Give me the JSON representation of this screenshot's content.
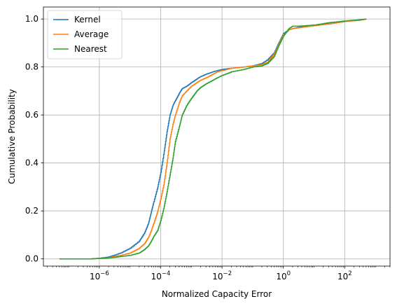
{
  "chart_data": {
    "type": "line",
    "title": "",
    "xlabel": "Normalized Capacity Error",
    "ylabel": "Cumulative Probability",
    "xscale": "log",
    "xlim": [
      1.5e-08,
      3000
    ],
    "ylim": [
      -0.03,
      1.05
    ],
    "grid": true,
    "legend_position": "top-left",
    "xticks": [
      {
        "value": 1e-06,
        "base": "10",
        "exp": "−6"
      },
      {
        "value": 0.0001,
        "base": "10",
        "exp": "−4"
      },
      {
        "value": 0.01,
        "base": "10",
        "exp": "−2"
      },
      {
        "value": 1,
        "base": "10",
        "exp": "0"
      },
      {
        "value": 100,
        "base": "10",
        "exp": "2"
      }
    ],
    "yticks": [
      {
        "value": 0.0,
        "label": "0.0"
      },
      {
        "value": 0.2,
        "label": "0.2"
      },
      {
        "value": 0.4,
        "label": "0.4"
      },
      {
        "value": 0.6,
        "label": "0.6"
      },
      {
        "value": 0.8,
        "label": "0.8"
      },
      {
        "value": 1.0,
        "label": "1.0"
      }
    ],
    "series": [
      {
        "name": "Kernel",
        "color": "#1f77b4",
        "x": [
          5e-08,
          5e-07,
          1e-06,
          2e-06,
          3e-06,
          5e-06,
          1e-05,
          2e-05,
          3e-05,
          4e-05,
          5e-05,
          6e-05,
          8e-05,
          0.0001,
          0.00013,
          0.00016,
          0.0002,
          0.00025,
          0.0003,
          0.0004,
          0.0005,
          0.0007,
          0.001,
          0.0015,
          0.002,
          0.003,
          0.005,
          0.007,
          0.01,
          0.02,
          0.05,
          0.1,
          0.2,
          0.3,
          0.5,
          0.7,
          1,
          1.5,
          2,
          3,
          5,
          10,
          30,
          100,
          300,
          500
        ],
        "y": [
          0.0,
          0.0,
          0.003,
          0.008,
          0.015,
          0.025,
          0.045,
          0.075,
          0.11,
          0.15,
          0.2,
          0.24,
          0.3,
          0.36,
          0.45,
          0.53,
          0.6,
          0.64,
          0.66,
          0.69,
          0.71,
          0.72,
          0.735,
          0.75,
          0.76,
          0.77,
          0.78,
          0.785,
          0.79,
          0.795,
          0.8,
          0.805,
          0.815,
          0.83,
          0.86,
          0.9,
          0.94,
          0.955,
          0.96,
          0.965,
          0.97,
          0.975,
          0.98,
          0.99,
          0.995,
          1.0
        ]
      },
      {
        "name": "Average",
        "color": "#ff7f0e",
        "x": [
          5e-08,
          5e-07,
          1e-06,
          2e-06,
          3e-06,
          5e-06,
          1e-05,
          2e-05,
          3e-05,
          4e-05,
          5e-05,
          6e-05,
          8e-05,
          0.0001,
          0.00013,
          0.00016,
          0.0002,
          0.00025,
          0.0003,
          0.0004,
          0.0005,
          0.0007,
          0.001,
          0.0015,
          0.002,
          0.003,
          0.005,
          0.007,
          0.01,
          0.02,
          0.05,
          0.1,
          0.2,
          0.3,
          0.5,
          0.7,
          1,
          1.5,
          2,
          3,
          5,
          10,
          30,
          100,
          300,
          500
        ],
        "y": [
          0.0,
          0.0,
          0.002,
          0.005,
          0.01,
          0.015,
          0.025,
          0.045,
          0.065,
          0.09,
          0.12,
          0.15,
          0.2,
          0.25,
          0.32,
          0.4,
          0.5,
          0.56,
          0.6,
          0.65,
          0.68,
          0.7,
          0.72,
          0.735,
          0.745,
          0.755,
          0.77,
          0.78,
          0.785,
          0.795,
          0.8,
          0.805,
          0.81,
          0.82,
          0.855,
          0.895,
          0.935,
          0.955,
          0.96,
          0.963,
          0.967,
          0.972,
          0.98,
          0.99,
          0.995,
          1.0
        ]
      },
      {
        "name": "Nearest",
        "color": "#2ca02c",
        "x": [
          5e-08,
          5e-07,
          1e-06,
          2e-06,
          3e-06,
          5e-06,
          1e-05,
          2e-05,
          3e-05,
          4e-05,
          5e-05,
          6e-05,
          8e-05,
          0.0001,
          0.00013,
          0.00016,
          0.0002,
          0.00025,
          0.0003,
          0.0004,
          0.0005,
          0.0007,
          0.001,
          0.0015,
          0.002,
          0.003,
          0.005,
          0.007,
          0.01,
          0.02,
          0.05,
          0.1,
          0.2,
          0.3,
          0.5,
          0.7,
          1,
          1.5,
          2,
          3,
          5,
          10,
          30,
          100,
          300,
          500
        ],
        "y": [
          0.0,
          0.0,
          0.002,
          0.004,
          0.006,
          0.01,
          0.015,
          0.025,
          0.04,
          0.055,
          0.075,
          0.095,
          0.12,
          0.16,
          0.22,
          0.28,
          0.35,
          0.42,
          0.49,
          0.55,
          0.6,
          0.64,
          0.67,
          0.7,
          0.715,
          0.73,
          0.745,
          0.755,
          0.765,
          0.78,
          0.79,
          0.8,
          0.805,
          0.815,
          0.845,
          0.89,
          0.93,
          0.96,
          0.97,
          0.97,
          0.972,
          0.975,
          0.985,
          0.992,
          0.997,
          1.0
        ]
      }
    ]
  }
}
